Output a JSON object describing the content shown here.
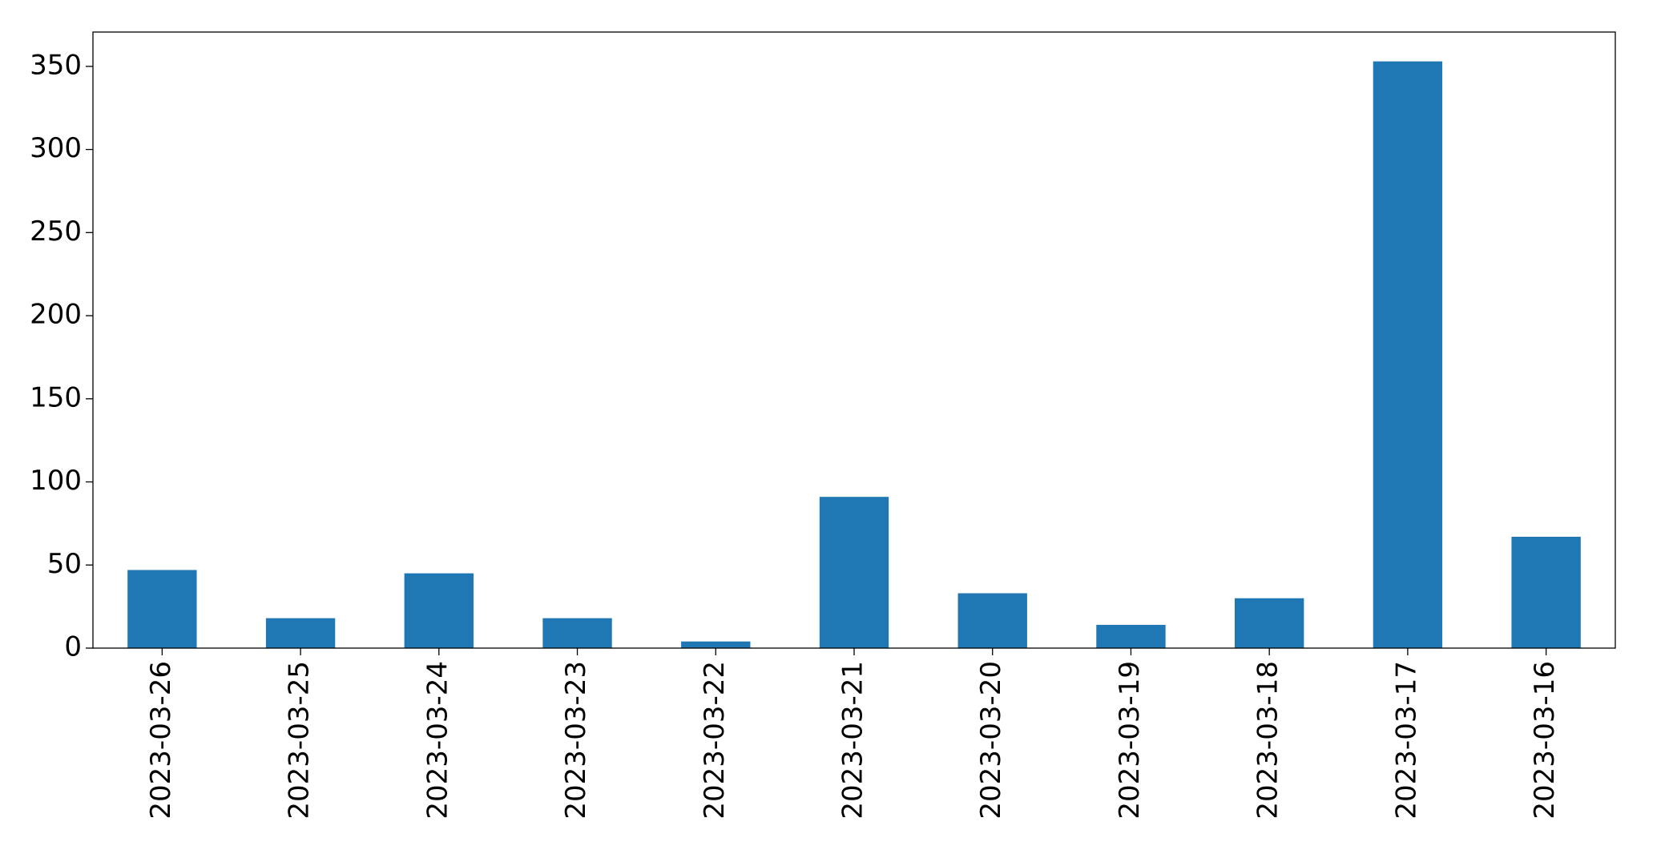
{
  "chart_data": {
    "type": "bar",
    "categories": [
      "2023-03-26",
      "2023-03-25",
      "2023-03-24",
      "2023-03-23",
      "2023-03-22",
      "2023-03-21",
      "2023-03-20",
      "2023-03-19",
      "2023-03-18",
      "2023-03-17",
      "2023-03-16"
    ],
    "values": [
      47,
      18,
      45,
      18,
      4,
      91,
      33,
      14,
      30,
      353,
      67
    ],
    "color": "#1f77b4",
    "ylim": [
      0,
      370.65
    ],
    "yticks": [
      0,
      50,
      100,
      150,
      200,
      250,
      300,
      350
    ],
    "grid": false
  }
}
